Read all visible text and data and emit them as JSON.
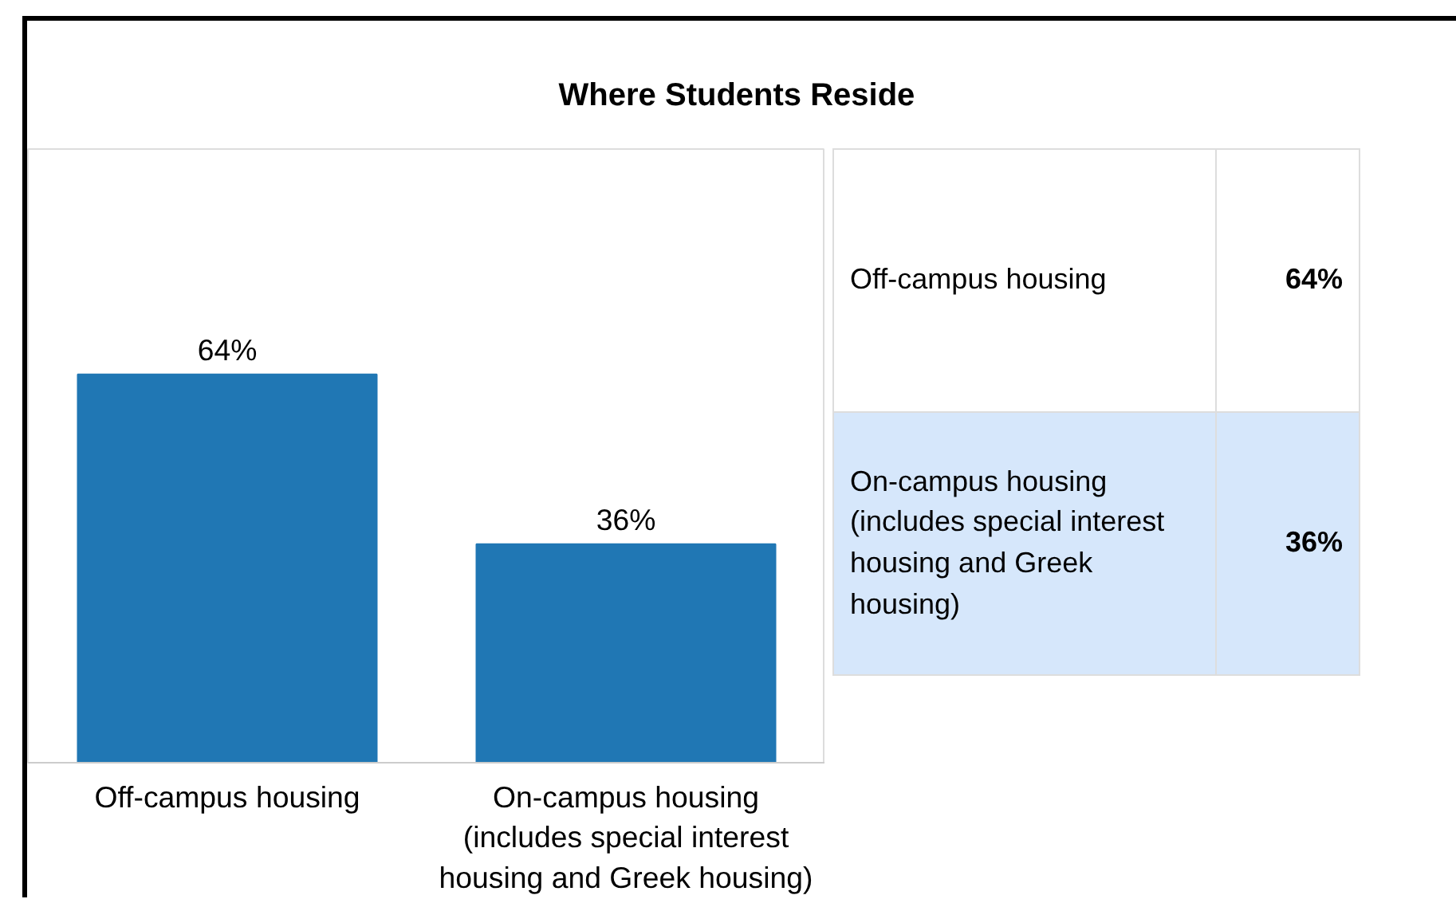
{
  "chart_data": {
    "type": "bar",
    "title": "Where Students Reside",
    "categories": [
      "Off-campus housing",
      "On-campus housing (includes special interest housing and Greek housing)"
    ],
    "values": [
      64,
      36
    ],
    "color": "#2077b4",
    "value_labels": [
      "64%",
      "36%"
    ],
    "grid": false
  }
}
